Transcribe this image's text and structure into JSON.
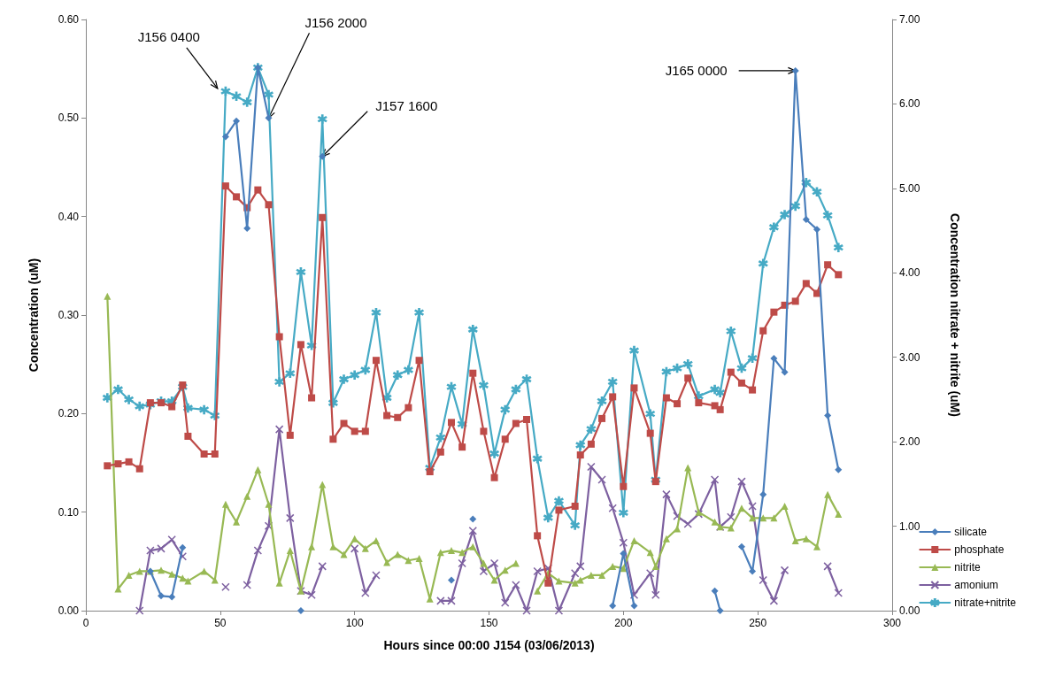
{
  "chart_data": {
    "type": "line",
    "xlabel": "Hours since 00:00 J154 (03/06/2013)",
    "ylabel": "Concentration (uM)",
    "y2label": "Concentration nitrate + nitrite (uM)",
    "x": [
      8,
      12,
      16,
      20,
      24,
      28,
      32,
      36,
      38,
      44,
      48,
      52,
      56,
      60,
      64,
      68,
      72,
      76,
      80,
      84,
      88,
      92,
      96,
      100,
      104,
      108,
      112,
      116,
      120,
      124,
      128,
      132,
      136,
      140,
      144,
      148,
      152,
      156,
      160,
      164,
      168,
      172,
      176,
      182,
      184,
      188,
      192,
      196,
      200,
      204,
      210,
      212,
      216,
      220,
      224,
      228,
      234,
      236,
      240,
      244,
      248,
      252,
      256,
      260,
      264,
      268,
      272,
      276,
      280
    ],
    "series": [
      {
        "name": "silicate",
        "color": "#4a7ebb",
        "marker": "diamond",
        "values": [
          null,
          null,
          null,
          null,
          0.04,
          0.015,
          0.014,
          0.064,
          null,
          null,
          null,
          0.481,
          0.497,
          0.388,
          0.551,
          0.5,
          null,
          null,
          0.0,
          null,
          0.461,
          null,
          null,
          null,
          null,
          null,
          null,
          null,
          null,
          null,
          null,
          null,
          0.031,
          null,
          0.093,
          null,
          null,
          null,
          null,
          null,
          null,
          null,
          null,
          null,
          null,
          null,
          null,
          0.005,
          0.058,
          0.005,
          null,
          null,
          null,
          null,
          null,
          null,
          0.02,
          0.0,
          null,
          0.065,
          0.04,
          0.118,
          0.256,
          0.242,
          0.548,
          0.397,
          0.387,
          0.198,
          0.143
        ]
      },
      {
        "name": "phosphate",
        "color": "#be4b48",
        "marker": "square",
        "values": [
          0.147,
          0.149,
          0.151,
          0.144,
          0.211,
          0.211,
          0.207,
          0.229,
          0.177,
          0.159,
          0.159,
          0.431,
          0.42,
          0.409,
          0.427,
          0.412,
          0.278,
          0.178,
          0.27,
          0.216,
          0.399,
          0.174,
          0.19,
          0.182,
          0.182,
          0.254,
          0.198,
          0.196,
          0.206,
          0.254,
          0.141,
          0.161,
          0.191,
          0.166,
          0.241,
          0.182,
          0.135,
          0.174,
          0.19,
          0.194,
          0.076,
          0.028,
          0.102,
          0.106,
          0.158,
          0.169,
          0.195,
          0.217,
          0.126,
          0.226,
          0.18,
          0.131,
          0.216,
          0.21,
          0.236,
          0.211,
          0.208,
          0.204,
          0.242,
          0.231,
          0.224,
          0.284,
          0.303,
          0.31,
          0.314,
          0.332,
          0.322,
          0.351,
          0.341
        ]
      },
      {
        "name": "nitrite",
        "color": "#98b954",
        "marker": "triangle",
        "values": [
          0.319,
          0.022,
          0.036,
          0.04,
          0.04,
          0.041,
          0.037,
          0.033,
          0.03,
          0.04,
          0.031,
          0.108,
          0.09,
          0.116,
          0.143,
          0.108,
          0.028,
          0.061,
          0.02,
          0.065,
          0.128,
          0.065,
          0.057,
          0.073,
          0.063,
          0.071,
          0.049,
          0.057,
          0.051,
          0.053,
          0.012,
          0.059,
          0.061,
          0.059,
          0.065,
          0.048,
          0.031,
          0.041,
          0.048,
          null,
          0.02,
          0.038,
          0.03,
          0.028,
          0.031,
          0.036,
          0.036,
          0.045,
          0.043,
          0.071,
          0.059,
          0.045,
          0.073,
          0.083,
          0.145,
          0.1,
          0.09,
          0.085,
          0.084,
          0.104,
          0.094,
          0.094,
          0.094,
          0.106,
          0.071,
          0.073,
          0.065,
          0.118,
          0.098
        ]
      },
      {
        "name": "amonium",
        "color": "#7d60a0",
        "marker": "cross",
        "values": [
          null,
          null,
          null,
          0.0,
          0.061,
          0.063,
          0.072,
          0.055,
          null,
          null,
          null,
          0.024,
          null,
          0.026,
          0.061,
          0.086,
          0.184,
          0.094,
          0.02,
          0.016,
          0.045,
          null,
          null,
          0.063,
          0.018,
          0.036,
          null,
          null,
          null,
          null,
          null,
          0.01,
          0.01,
          0.048,
          0.081,
          0.04,
          0.048,
          0.008,
          0.026,
          0.0,
          0.04,
          0.043,
          0.0,
          0.038,
          0.045,
          0.146,
          0.133,
          0.104,
          0.069,
          0.016,
          0.038,
          0.016,
          0.118,
          0.096,
          0.088,
          0.098,
          0.133,
          0.085,
          0.095,
          0.131,
          0.106,
          0.031,
          0.01,
          0.041,
          null,
          null,
          null,
          0.045,
          0.018
        ]
      },
      {
        "name": "nitrate+nitrite",
        "color": "#46aac5",
        "marker": "star",
        "axis": "y2",
        "values": [
          2.52,
          2.62,
          2.5,
          2.42,
          2.44,
          2.48,
          2.48,
          2.65,
          2.4,
          2.38,
          2.31,
          6.15,
          6.09,
          6.02,
          6.43,
          6.11,
          2.71,
          2.81,
          4.01,
          3.14,
          5.82,
          2.46,
          2.74,
          2.79,
          2.85,
          3.53,
          2.52,
          2.79,
          2.85,
          3.53,
          1.69,
          2.05,
          2.65,
          2.21,
          3.33,
          2.67,
          1.86,
          2.38,
          2.62,
          2.74,
          1.8,
          1.1,
          1.3,
          1.01,
          1.96,
          2.15,
          2.48,
          2.71,
          1.16,
          3.08,
          2.33,
          1.55,
          2.83,
          2.87,
          2.92,
          2.54,
          2.62,
          2.58,
          3.31,
          2.87,
          2.99,
          4.11,
          4.54,
          4.69,
          4.79,
          5.07,
          4.96,
          4.68,
          4.3
        ]
      }
    ],
    "xlim": [
      0,
      300
    ],
    "xticks": [
      0,
      50,
      100,
      150,
      200,
      250,
      300
    ],
    "ylim": [
      0,
      0.6
    ],
    "yticks": [
      {
        "value": 0,
        "label": "0.00"
      },
      {
        "value": 0.1,
        "label": "0.10"
      },
      {
        "value": 0.2,
        "label": "0.20"
      },
      {
        "value": 0.3,
        "label": "0.30"
      },
      {
        "value": 0.4,
        "label": "0.40"
      },
      {
        "value": 0.5,
        "label": "0.50"
      },
      {
        "value": 0.6,
        "label": "0.60"
      }
    ],
    "y2lim": [
      0,
      7
    ],
    "y2ticks": [
      {
        "value": 0,
        "label": "0.00"
      },
      {
        "value": 1,
        "label": "1.00"
      },
      {
        "value": 2,
        "label": "2.00"
      },
      {
        "value": 3,
        "label": "3.00"
      },
      {
        "value": 4,
        "label": "4.00"
      },
      {
        "value": 5,
        "label": "5.00"
      },
      {
        "value": 6,
        "label": "6.00"
      },
      {
        "value": 7,
        "label": "7.00"
      }
    ],
    "annotations": [
      {
        "text": "J156 0400",
        "x": 49,
        "y": 0.53
      },
      {
        "text": "J156 2000",
        "x": 68,
        "y": 0.5
      },
      {
        "text": "J157 1600",
        "x": 88,
        "y": 0.461
      },
      {
        "text": "J165 0000",
        "x": 264,
        "y": 0.548
      }
    ],
    "legend": "bottom right",
    "line_style": "solid"
  }
}
